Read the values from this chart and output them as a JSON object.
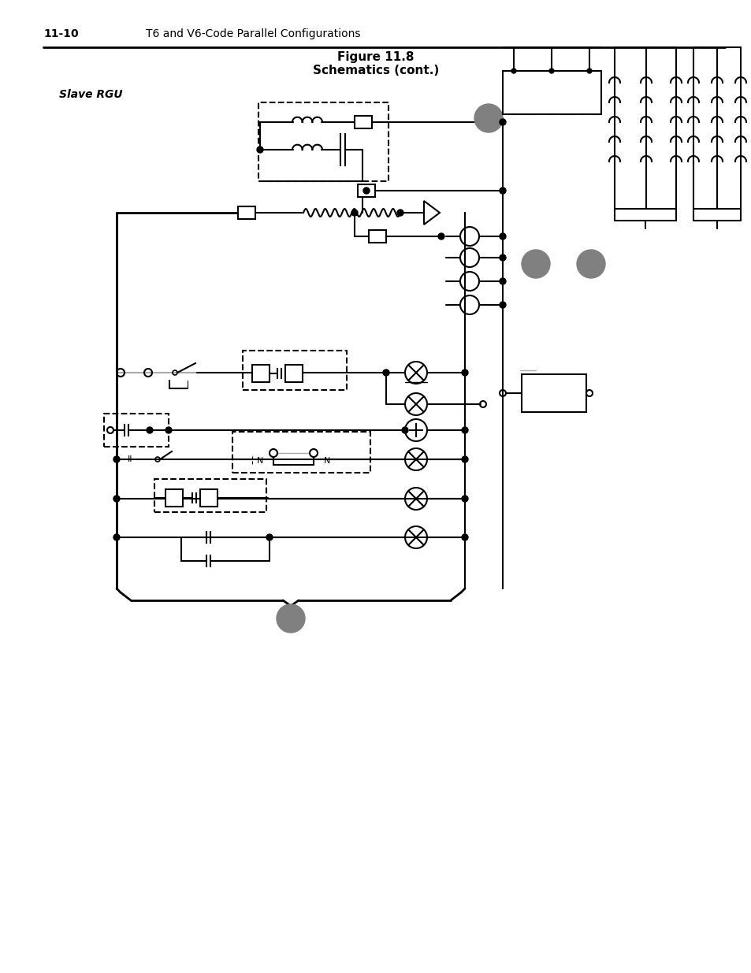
{
  "page_number": "11-10",
  "page_header": "T6 and V6-Code Parallel Configurations",
  "title_line1": "Figure 11.8",
  "title_line2": "Schematics (cont.)",
  "slave_rgu_label": "Slave RGU",
  "bg_color": "#ffffff",
  "line_color": "#000000",
  "gray_color": "#808080",
  "light_gray": "#aaaaaa",
  "dashed_gray": "#999999"
}
